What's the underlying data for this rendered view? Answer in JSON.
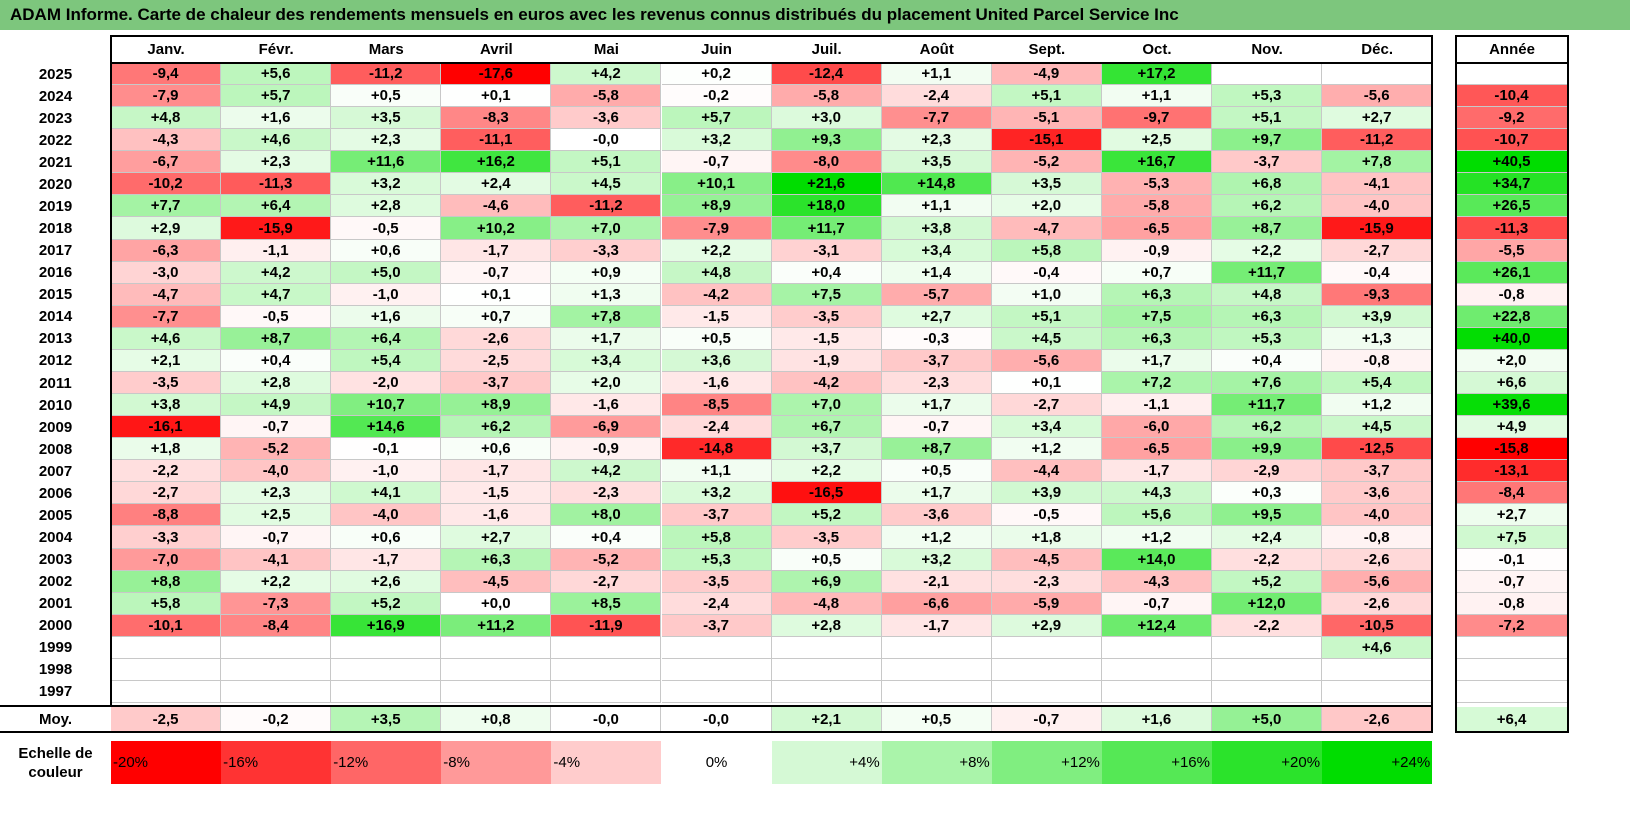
{
  "title": "ADAM Informe. Carte de chaleur des rendements mensuels en euros avec les revenus connus distribués du placement United Parcel Service Inc",
  "colors": {
    "title_bar": "#7dc67d",
    "negative_max": "#ff0000",
    "positive_max": "#00dd00",
    "neutral": "#ffffff"
  },
  "chart_data": {
    "type": "heatmap",
    "columns": [
      "Janv.",
      "Févr.",
      "Mars",
      "Avril",
      "Mai",
      "Juin",
      "Juil.",
      "Août",
      "Sept.",
      "Oct.",
      "Nov.",
      "Déc."
    ],
    "annual_label": "Année",
    "rows": [
      {
        "year": "2025",
        "values": [
          "-9,4",
          "+5,6",
          "-11,2",
          "-17,6",
          "+4,2",
          "+0,2",
          "-12,4",
          "+1,1",
          "-4,9",
          "+17,2",
          "",
          ""
        ],
        "annual": ""
      },
      {
        "year": "2024",
        "values": [
          "-7,9",
          "+5,7",
          "+0,5",
          "+0,1",
          "-5,8",
          "-0,2",
          "-5,8",
          "-2,4",
          "+5,1",
          "+1,1",
          "+5,3",
          "-5,6"
        ],
        "annual": "-10,4"
      },
      {
        "year": "2023",
        "values": [
          "+4,8",
          "+1,6",
          "+3,5",
          "-8,3",
          "-3,6",
          "+5,7",
          "+3,0",
          "-7,7",
          "-5,1",
          "-9,7",
          "+5,1",
          "+2,7"
        ],
        "annual": "-9,2"
      },
      {
        "year": "2022",
        "values": [
          "-4,3",
          "+4,6",
          "+2,3",
          "-11,1",
          "-0,0",
          "+3,2",
          "+9,3",
          "+2,3",
          "-15,1",
          "+2,5",
          "+9,7",
          "-11,2"
        ],
        "annual": "-10,7"
      },
      {
        "year": "2021",
        "values": [
          "-6,7",
          "+2,3",
          "+11,6",
          "+16,2",
          "+5,1",
          "-0,7",
          "-8,0",
          "+3,5",
          "-5,2",
          "+16,7",
          "-3,7",
          "+7,8"
        ],
        "annual": "+40,5"
      },
      {
        "year": "2020",
        "values": [
          "-10,2",
          "-11,3",
          "+3,2",
          "+2,4",
          "+4,5",
          "+10,1",
          "+21,6",
          "+14,8",
          "+3,5",
          "-5,3",
          "+6,8",
          "-4,1"
        ],
        "annual": "+34,7"
      },
      {
        "year": "2019",
        "values": [
          "+7,7",
          "+6,4",
          "+2,8",
          "-4,6",
          "-11,2",
          "+8,9",
          "+18,0",
          "+1,1",
          "+2,0",
          "-5,8",
          "+6,2",
          "-4,0"
        ],
        "annual": "+26,5"
      },
      {
        "year": "2018",
        "values": [
          "+2,9",
          "-15,9",
          "-0,5",
          "+10,2",
          "+7,0",
          "-7,9",
          "+11,7",
          "+3,8",
          "-4,7",
          "-6,5",
          "+8,7",
          "-15,9"
        ],
        "annual": "-11,3"
      },
      {
        "year": "2017",
        "values": [
          "-6,3",
          "-1,1",
          "+0,6",
          "-1,7",
          "-3,3",
          "+2,2",
          "-3,1",
          "+3,4",
          "+5,8",
          "-0,9",
          "+2,2",
          "-2,7"
        ],
        "annual": "-5,5"
      },
      {
        "year": "2016",
        "values": [
          "-3,0",
          "+4,2",
          "+5,0",
          "-0,7",
          "+0,9",
          "+4,8",
          "+0,4",
          "+1,4",
          "-0,4",
          "+0,7",
          "+11,7",
          "-0,4"
        ],
        "annual": "+26,1"
      },
      {
        "year": "2015",
        "values": [
          "-4,7",
          "+4,7",
          "-1,0",
          "+0,1",
          "+1,3",
          "-4,2",
          "+7,5",
          "-5,7",
          "+1,0",
          "+6,3",
          "+4,8",
          "-9,3"
        ],
        "annual": "-0,8"
      },
      {
        "year": "2014",
        "values": [
          "-7,7",
          "-0,5",
          "+1,6",
          "+0,7",
          "+7,8",
          "-1,5",
          "-3,5",
          "+2,7",
          "+5,1",
          "+7,5",
          "+6,3",
          "+3,9"
        ],
        "annual": "+22,8"
      },
      {
        "year": "2013",
        "values": [
          "+4,6",
          "+8,7",
          "+6,4",
          "-2,6",
          "+1,7",
          "+0,5",
          "-1,5",
          "-0,3",
          "+4,5",
          "+6,3",
          "+5,3",
          "+1,3"
        ],
        "annual": "+40,0"
      },
      {
        "year": "2012",
        "values": [
          "+2,1",
          "+0,4",
          "+5,4",
          "-2,5",
          "+3,4",
          "+3,6",
          "-1,9",
          "-3,7",
          "-5,6",
          "+1,7",
          "+0,4",
          "-0,8"
        ],
        "annual": "+2,0"
      },
      {
        "year": "2011",
        "values": [
          "-3,5",
          "+2,8",
          "-2,0",
          "-3,7",
          "+2,0",
          "-1,6",
          "-4,2",
          "-2,3",
          "+0,1",
          "+7,2",
          "+7,6",
          "+5,4"
        ],
        "annual": "+6,6"
      },
      {
        "year": "2010",
        "values": [
          "+3,8",
          "+4,9",
          "+10,7",
          "+8,9",
          "-1,6",
          "-8,5",
          "+7,0",
          "+1,7",
          "-2,7",
          "-1,1",
          "+11,7",
          "+1,2"
        ],
        "annual": "+39,6"
      },
      {
        "year": "2009",
        "values": [
          "-16,1",
          "-0,7",
          "+14,6",
          "+6,2",
          "-6,9",
          "-2,4",
          "+6,7",
          "-0,7",
          "+3,4",
          "-6,0",
          "+6,2",
          "+4,5"
        ],
        "annual": "+4,9"
      },
      {
        "year": "2008",
        "values": [
          "+1,8",
          "-5,2",
          "-0,1",
          "+0,6",
          "-0,9",
          "-14,8",
          "+3,7",
          "+8,7",
          "+1,2",
          "-6,5",
          "+9,9",
          "-12,5"
        ],
        "annual": "-15,8"
      },
      {
        "year": "2007",
        "values": [
          "-2,2",
          "-4,0",
          "-1,0",
          "-1,7",
          "+4,2",
          "+1,1",
          "+2,2",
          "+0,5",
          "-4,4",
          "-1,7",
          "-2,9",
          "-3,7"
        ],
        "annual": "-13,1"
      },
      {
        "year": "2006",
        "values": [
          "-2,7",
          "+2,3",
          "+4,1",
          "-1,5",
          "-2,3",
          "+3,2",
          "-16,5",
          "+1,7",
          "+3,9",
          "+4,3",
          "+0,3",
          "-3,6"
        ],
        "annual": "-8,4"
      },
      {
        "year": "2005",
        "values": [
          "-8,8",
          "+2,5",
          "-4,0",
          "-1,6",
          "+8,0",
          "-3,7",
          "+5,2",
          "-3,6",
          "-0,5",
          "+5,6",
          "+9,5",
          "-4,0"
        ],
        "annual": "+2,7"
      },
      {
        "year": "2004",
        "values": [
          "-3,3",
          "-0,7",
          "+0,6",
          "+2,7",
          "+0,4",
          "+5,8",
          "-3,5",
          "+1,2",
          "+1,8",
          "+1,2",
          "+2,4",
          "-0,8"
        ],
        "annual": "+7,5"
      },
      {
        "year": "2003",
        "values": [
          "-7,0",
          "-4,1",
          "-1,7",
          "+6,3",
          "-5,2",
          "+5,3",
          "+0,5",
          "+3,2",
          "-4,5",
          "+14,0",
          "-2,2",
          "-2,6"
        ],
        "annual": "-0,1"
      },
      {
        "year": "2002",
        "values": [
          "+8,8",
          "+2,2",
          "+2,6",
          "-4,5",
          "-2,7",
          "-3,5",
          "+6,9",
          "-2,1",
          "-2,3",
          "-4,3",
          "+5,2",
          "-5,6"
        ],
        "annual": "-0,7"
      },
      {
        "year": "2001",
        "values": [
          "+5,8",
          "-7,3",
          "+5,2",
          "+0,0",
          "+8,5",
          "-2,4",
          "-4,8",
          "-6,6",
          "-5,9",
          "-0,7",
          "+12,0",
          "-2,6"
        ],
        "annual": "-0,8"
      },
      {
        "year": "2000",
        "values": [
          "-10,1",
          "-8,4",
          "+16,9",
          "+11,2",
          "-11,9",
          "-3,7",
          "+2,8",
          "-1,7",
          "+2,9",
          "+12,4",
          "-2,2",
          "-10,5"
        ],
        "annual": "-7,2"
      },
      {
        "year": "1999",
        "values": [
          "",
          "",
          "",
          "",
          "",
          "",
          "",
          "",
          "",
          "",
          "",
          "+4,6"
        ],
        "annual": ""
      },
      {
        "year": "1998",
        "values": [
          "",
          "",
          "",
          "",
          "",
          "",
          "",
          "",
          "",
          "",
          "",
          ""
        ],
        "annual": ""
      },
      {
        "year": "1997",
        "values": [
          "",
          "",
          "",
          "",
          "",
          "",
          "",
          "",
          "",
          "",
          "",
          ""
        ],
        "annual": ""
      }
    ],
    "average": {
      "label": "Moy.",
      "values": [
        "-2,5",
        "-0,2",
        "+3,5",
        "+0,8",
        "-0,0",
        "-0,0",
        "+2,1",
        "+0,5",
        "-0,7",
        "+1,6",
        "+5,0",
        "-2,6"
      ],
      "annual": "+6,4"
    },
    "scale": {
      "label": "Echelle de couleur",
      "steps": [
        "-20%",
        "-16%",
        "-12%",
        "-8%",
        "-4%",
        "0%",
        "+4%",
        "+8%",
        "+12%",
        "+16%",
        "+20%",
        "+24%"
      ]
    }
  }
}
